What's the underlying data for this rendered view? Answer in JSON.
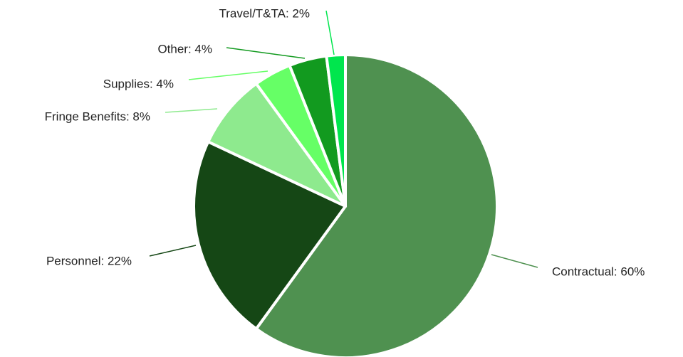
{
  "chart_data": {
    "type": "pie",
    "values": [
      60,
      22,
      8,
      4,
      4,
      2
    ],
    "value_labels": [
      "Contractual: 60%",
      "Personnel: 22%",
      "Fringe Benefits: 8%",
      "Supplies: 4%",
      "Other: 4%",
      "Travel/T&TA: 2%"
    ],
    "colors": [
      "#4f9150",
      "#154715",
      "#8eea8e",
      "#66ff66",
      "#129a1f",
      "#00e64d"
    ]
  }
}
